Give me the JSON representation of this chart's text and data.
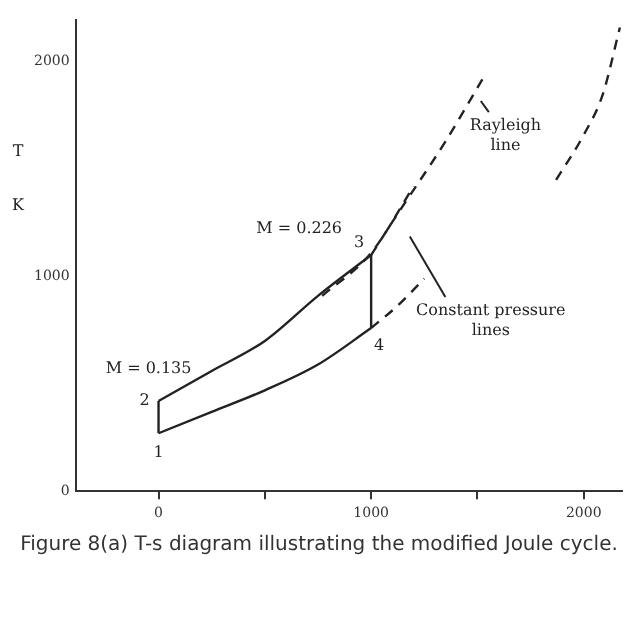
{
  "chart_data": {
    "type": "line",
    "ylabel": "T K",
    "xlim": [
      -390,
      2180
    ],
    "ylim": [
      0,
      2195
    ],
    "xticks": [
      0,
      {
        "value": 500,
        "label": null
      },
      1000,
      {
        "value": 1500,
        "label": null
      },
      2000
    ],
    "yticks": [
      0,
      1000,
      2000
    ],
    "grid": false,
    "legend": false,
    "marker": "none",
    "series": [
      {
        "color": "#222222",
        "line_style": "solid",
        "x": [
          0,
          250,
          500,
          750,
          1000
        ],
        "values": [
          270,
          370,
          470,
          590,
          760
        ]
      },
      {
        "color": "#222222",
        "line_style": "solid",
        "x": [
          0,
          250,
          500,
          750,
          1000
        ],
        "values": [
          420,
          560,
          700,
          910,
          1100
        ]
      },
      {
        "color": "#222222",
        "line_style": "solid",
        "x": [
          0,
          0
        ],
        "values": [
          270,
          420
        ]
      },
      {
        "color": "#222222",
        "line_style": "solid",
        "x": [
          1000,
          1000
        ],
        "values": [
          760,
          1100
        ]
      },
      {
        "color": "#222222",
        "line_style": "dashed",
        "x": [
          1000,
          1120,
          1250
        ],
        "values": [
          760,
          860,
          990
        ]
      },
      {
        "color": "#222222",
        "line_style": "dashed",
        "x": [
          1000,
          1110,
          1350,
          1530
        ],
        "values": [
          1100,
          1270,
          1630,
          1930
        ]
      },
      {
        "color": "#222222",
        "line_style": "dashed",
        "x": [
          770,
          1000,
          1200
        ],
        "values": [
          910,
          1110,
          1420
        ]
      },
      {
        "color": "#222222",
        "line_style": "dashed",
        "x": [
          1870,
          2000,
          2090,
          2170
        ],
        "values": [
          1450,
          1660,
          1850,
          2160
        ]
      }
    ],
    "annotations": [
      {
        "text": "1",
        "x": 0,
        "y": 270
      },
      {
        "text": "2",
        "x": 0,
        "y": 420
      },
      {
        "text": "3",
        "x": 1000,
        "y": 1100
      },
      {
        "text": "4",
        "x": 1000,
        "y": 760
      },
      {
        "text": "M = 0.135",
        "x": 0,
        "y": 420
      },
      {
        "text": "M = 0.226",
        "x": 1000,
        "y": 1100
      },
      {
        "text": "Rayleigh line",
        "x": 1500,
        "y": 1840
      },
      {
        "text": "Constant pressure lines",
        "x": 1130,
        "y": 1240
      },
      "Figure 8(a) T-s diagram illustrating the modified Joule cycle."
    ]
  }
}
